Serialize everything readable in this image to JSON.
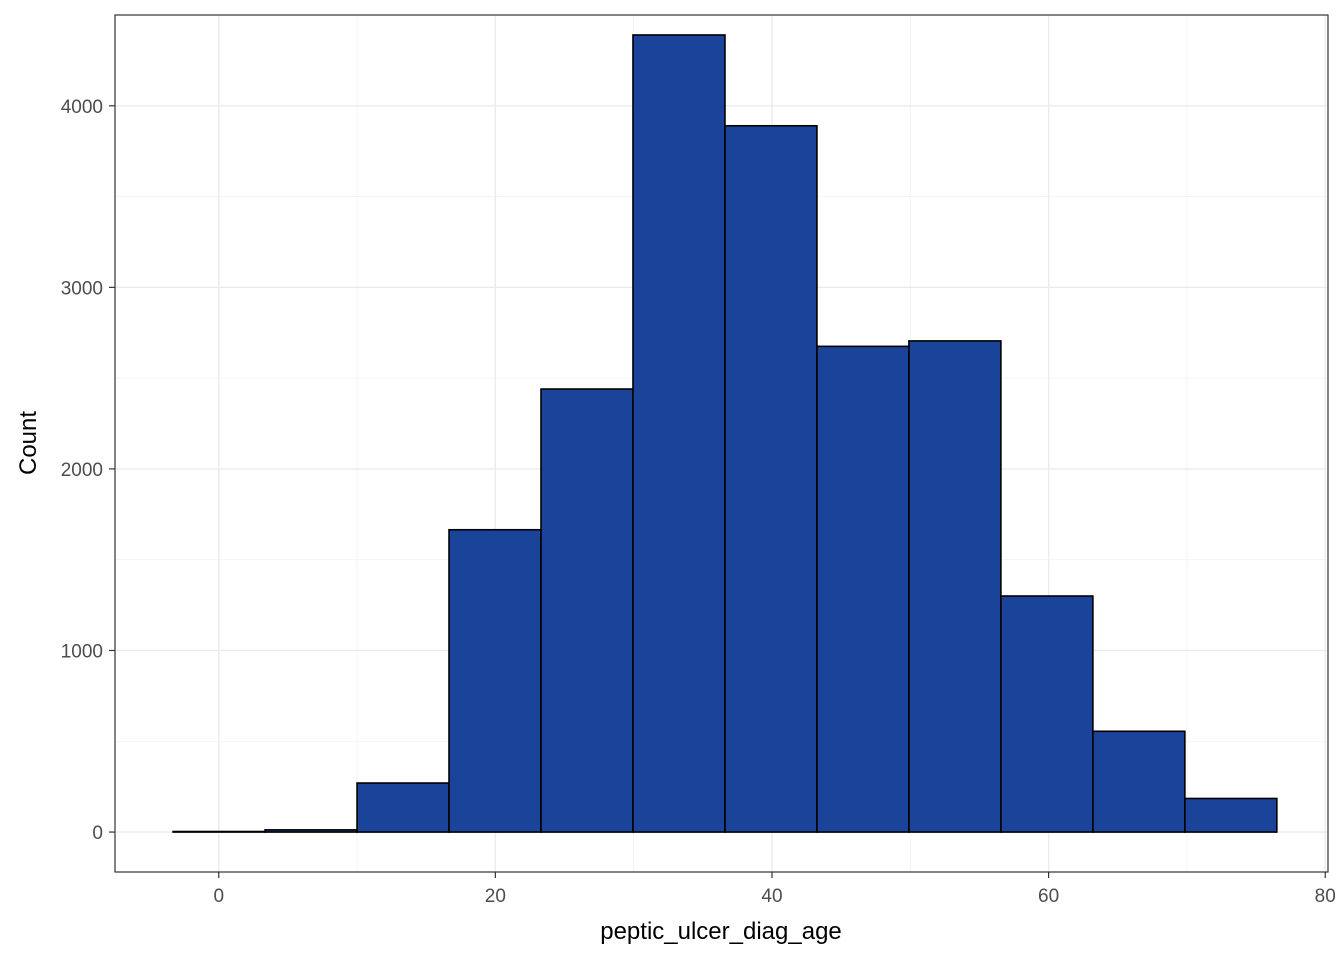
{
  "chart_data": {
    "type": "bar",
    "subtype": "histogram",
    "title": "",
    "xlabel": "peptic_ulcer_diag_age",
    "ylabel": "Count",
    "xlim": [
      -7.5,
      80.2
    ],
    "ylim": [
      -220,
      4500
    ],
    "x_ticks": [
      0,
      20,
      40,
      60,
      80
    ],
    "x_tick_labels": [
      "0",
      "20",
      "40",
      "60",
      "80"
    ],
    "y_ticks": [
      0,
      1000,
      2000,
      3000,
      4000
    ],
    "y_tick_labels": [
      "0",
      "1000",
      "2000",
      "3000",
      "4000"
    ],
    "bins": [
      {
        "x0": -3.3,
        "x1": 3.35,
        "count": 3
      },
      {
        "x0": 3.35,
        "x1": 10.0,
        "count": 12
      },
      {
        "x0": 10.0,
        "x1": 16.65,
        "count": 270
      },
      {
        "x0": 16.65,
        "x1": 23.3,
        "count": 1665
      },
      {
        "x0": 23.3,
        "x1": 29.95,
        "count": 2440
      },
      {
        "x0": 29.95,
        "x1": 36.6,
        "count": 4390
      },
      {
        "x0": 36.6,
        "x1": 43.25,
        "count": 3890
      },
      {
        "x0": 43.25,
        "x1": 49.9,
        "count": 2675
      },
      {
        "x0": 49.9,
        "x1": 56.55,
        "count": 2705
      },
      {
        "x0": 56.55,
        "x1": 63.2,
        "count": 1300
      },
      {
        "x0": 63.2,
        "x1": 69.85,
        "count": 555
      },
      {
        "x0": 69.85,
        "x1": 76.5,
        "count": 185
      }
    ],
    "bar_fill": "#1a439a",
    "bar_stroke": "#000000",
    "grid": true,
    "grid_major_color": "#ebebeb",
    "grid_minor_color": "#f2f2f2",
    "panel_border_color": "#333333",
    "legend": "none"
  }
}
